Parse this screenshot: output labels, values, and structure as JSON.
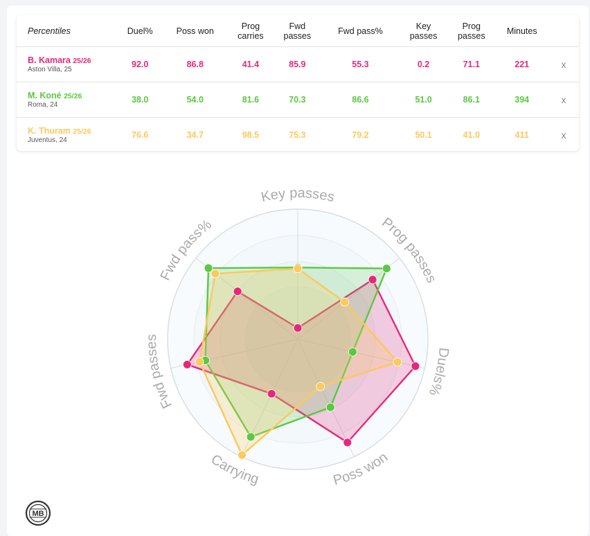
{
  "table": {
    "header_label": "Percentiles",
    "columns": [
      {
        "line1": "Duel%",
        "line2": ""
      },
      {
        "line1": "Poss won",
        "line2": ""
      },
      {
        "line1": "Prog",
        "line2": "carries"
      },
      {
        "line1": "Fwd",
        "line2": "passes"
      },
      {
        "line1": "Fwd pass%",
        "line2": ""
      },
      {
        "line1": "Key",
        "line2": "passes"
      },
      {
        "line1": "Prog",
        "line2": "passes"
      },
      {
        "line1": "Minutes",
        "line2": ""
      }
    ],
    "remove_label": "x",
    "rows": [
      {
        "name": "B. Kamara",
        "season": "25/26",
        "info": "Aston Villa, 25",
        "values": [
          "92.0",
          "86.8",
          "41.4",
          "85.9",
          "55.3",
          "0.2",
          "71.1",
          "221"
        ]
      },
      {
        "name": "M. Koné",
        "season": "25/26",
        "info": "Roma, 24",
        "values": [
          "38.0",
          "54.0",
          "81.6",
          "70.3",
          "86.6",
          "51.0",
          "86.1",
          "394"
        ]
      },
      {
        "name": "K. Thuram",
        "season": "25/26",
        "info": "Juventus, 24",
        "values": [
          "76.6",
          "34.7",
          "98.5",
          "75.3",
          "79.2",
          "50.1",
          "41.0",
          "411"
        ]
      }
    ]
  },
  "colors": {
    "kamara": "#e6287a",
    "kone": "#5ac841",
    "thuram": "#fbc95c"
  },
  "logo_text": "MB",
  "chart_data": {
    "type": "radar",
    "axes": [
      "Key passes",
      "Prog passes",
      "Duels%",
      "Poss won",
      "Carrying",
      "Fwd passes",
      "Fwd pass%"
    ],
    "range": [
      0,
      100
    ],
    "grid": true,
    "series": [
      {
        "name": "B. Kamara",
        "values": [
          0.2,
          71.1,
          92.0,
          86.8,
          41.4,
          85.9,
          55.3
        ]
      },
      {
        "name": "M. Koné",
        "values": [
          51.0,
          86.1,
          38.0,
          54.0,
          81.6,
          70.3,
          86.6
        ]
      },
      {
        "name": "K. Thuram",
        "values": [
          50.1,
          41.0,
          76.6,
          34.7,
          98.5,
          75.3,
          79.2
        ]
      }
    ]
  }
}
